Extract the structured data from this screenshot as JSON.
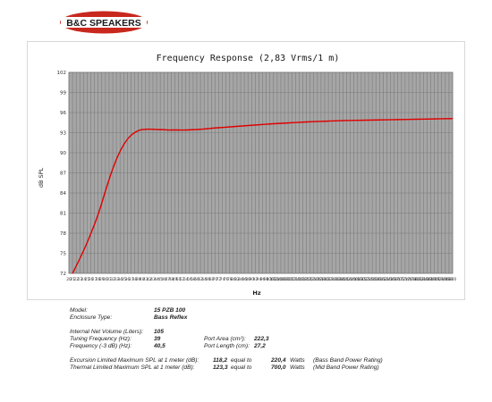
{
  "brand": {
    "logo_text": "B&C SPEAKERS",
    "logo_bg": "#c8281e",
    "logo_text_color": "#1a1a1a"
  },
  "chart_data": {
    "type": "line",
    "title": "Frequency Response (2,83 Vrms/1 m)",
    "xlabel": "Hz",
    "ylabel": "dB SPL",
    "ylim": [
      72,
      102
    ],
    "yticks": [
      72,
      75,
      78,
      81,
      84,
      87,
      90,
      93,
      96,
      99,
      102
    ],
    "xticks": [
      20,
      21,
      22,
      23,
      24,
      25,
      26,
      27,
      28,
      29,
      30,
      31,
      32,
      33,
      34,
      35,
      36,
      37,
      38,
      39,
      40,
      41,
      42,
      43,
      44,
      45,
      46,
      47,
      48,
      49,
      50,
      52,
      54,
      56,
      58,
      60,
      62,
      64,
      66,
      68,
      70,
      72,
      74,
      76,
      78,
      80,
      82,
      84,
      86,
      88,
      90,
      92,
      94,
      96,
      98,
      100,
      102,
      104,
      106,
      108,
      110,
      112,
      114,
      116,
      118,
      120,
      122,
      124,
      126,
      128,
      130,
      132,
      134,
      136,
      138,
      140,
      142,
      144,
      146,
      148,
      150,
      152,
      154,
      156,
      158,
      160,
      162,
      164,
      166,
      168,
      170,
      172,
      174,
      176,
      178,
      180,
      182,
      184,
      186,
      188,
      190,
      192,
      194,
      196,
      198,
      200
    ],
    "xtick_labels": [
      "20",
      "21",
      "22",
      "23",
      "24",
      "25",
      "26",
      "27",
      "28",
      "29",
      "30",
      "31",
      "32",
      "33",
      "34",
      "35",
      "36",
      "37",
      "38",
      "39",
      "40",
      "41",
      "42",
      "43",
      "44",
      "45",
      "46",
      "47",
      "48",
      "49",
      "50",
      "52",
      "54",
      "56",
      "58",
      "60",
      "62",
      "64",
      "66",
      "68",
      "70",
      "72",
      "74",
      "76",
      "78",
      "80",
      "82",
      "84",
      "86",
      "88",
      "90",
      "92",
      "94",
      "96",
      "98",
      "100",
      "102",
      "104",
      "106",
      "108",
      "110",
      "112",
      "114",
      "116",
      "118",
      "120",
      "122",
      "124",
      "126",
      "128",
      "130",
      "132",
      "134",
      "136",
      "138",
      "140",
      "142",
      "144",
      "146",
      "148",
      "150",
      "152",
      "154",
      "156",
      "158",
      "160",
      "162",
      "164",
      "166",
      "168",
      "170",
      "172",
      "174",
      "176",
      "178",
      "180",
      "182",
      "184",
      "186",
      "188",
      "190",
      "192",
      "194",
      "196",
      "198",
      "200"
    ],
    "xtick_labels_shown": [
      "20",
      "21",
      "22",
      "23",
      "24",
      "25",
      "26",
      "27",
      "28",
      "29",
      "30",
      "31",
      "32",
      "33",
      "34",
      "35",
      "36",
      "37",
      "38",
      "39",
      "40",
      "41",
      "42",
      "43",
      "44",
      "45",
      "46",
      "47",
      "48",
      "49",
      "50",
      "52",
      "54",
      "56",
      "58",
      "60",
      "62",
      "64",
      "66",
      "68",
      "70",
      "72",
      "74",
      "76",
      "78",
      "80",
      "82",
      "84",
      "86",
      "88",
      "90",
      "92",
      "94",
      "96",
      "98",
      "100",
      "102",
      "104",
      "106",
      "108",
      "110",
      "112",
      "114",
      "116",
      "118",
      "120",
      "122",
      "124",
      "126",
      "128",
      "130",
      "132",
      "134",
      "136",
      "138",
      "140",
      "142",
      "144",
      "146",
      "148",
      "150",
      "152",
      "154",
      "156",
      "158",
      "160",
      "162",
      "164",
      "166",
      "168",
      "170",
      "172",
      "174",
      "176",
      "178",
      "180",
      "182",
      "184",
      "186",
      "188",
      "190",
      "192",
      "194",
      "196",
      "198",
      "200"
    ],
    "grid": true,
    "plot_bg": "#a6a6a6",
    "grid_color": "#7a7a7a",
    "line_color": "#e00000",
    "series": [
      {
        "x": [
          21,
          23,
          25,
          27,
          28,
          29,
          30,
          31,
          32,
          33,
          34,
          35,
          36,
          37,
          38,
          39,
          40,
          41,
          42,
          43,
          44,
          45,
          46,
          47,
          48,
          50,
          54,
          58,
          62,
          66,
          70,
          80,
          90,
          100,
          110,
          120,
          130,
          140,
          150,
          160,
          170,
          180,
          190,
          200
        ],
        "y": [
          72.0,
          74.2,
          76.6,
          79.3,
          80.8,
          82.5,
          84.3,
          86.0,
          87.6,
          89.0,
          90.2,
          91.2,
          92.0,
          92.6,
          93.0,
          93.3,
          93.45,
          93.5,
          93.52,
          93.5,
          93.48,
          93.45,
          93.45,
          93.4,
          93.4,
          93.4,
          93.4,
          93.45,
          93.5,
          93.6,
          93.7,
          93.9,
          94.1,
          94.3,
          94.45,
          94.6,
          94.7,
          94.8,
          94.85,
          94.9,
          94.95,
          95.0,
          95.05,
          95.1
        ]
      }
    ]
  },
  "specs": {
    "model_label": "Model:",
    "model_value": "15 PZB 100",
    "enclosure_label": "Enclosure Type:",
    "enclosure_value": "Bass Reflex",
    "volume_label": "Internal  Net Volume (Liters):",
    "volume_value": "105",
    "tuning_label": "Tuning Frequency (Hz):",
    "tuning_value": "39",
    "port_area_label": "Port Area (cm²):",
    "port_area_value": "222,3",
    "freq3db_label": "Frequency (-3 dB) (Hz):",
    "freq3db_value": "40,5",
    "port_length_label": "Port Length (cm):",
    "port_length_value": "27,2",
    "excursion_label": "Excursion Limited Maximum SPL at 1 meter (dB):",
    "excursion_value": "118,2",
    "excursion_equal": "equal to",
    "excursion_watts": "220,4",
    "excursion_unit": "Watts",
    "excursion_note": "(Bass Band Power Rating)",
    "thermal_label": "Thermal Limited Maximum SPL at 1 meter (dB):",
    "thermal_value": "123,3",
    "thermal_equal": "equal to",
    "thermal_watts": "700,0",
    "thermal_unit": "Watts",
    "thermal_note": "(Mid Band Power Rating)"
  }
}
